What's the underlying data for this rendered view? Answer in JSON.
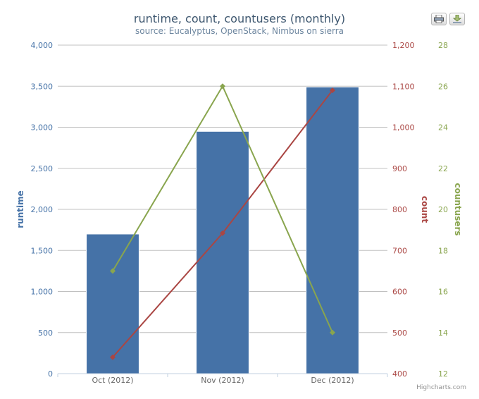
{
  "chart_data": {
    "type": "bar",
    "title": "runtime, count, countusers (monthly)",
    "subtitle": "source: Eucalyptus, OpenStack, Nimbus on sierra",
    "categories": [
      "Oct (2012)",
      "Nov (2012)",
      "Dec (2012)"
    ],
    "axes": {
      "runtime": {
        "label": "runtime",
        "range": [
          0,
          4000
        ],
        "ticks": [
          "0",
          "500",
          "1,000",
          "1,500",
          "2,000",
          "2,500",
          "3,000",
          "3,500",
          "4,000"
        ],
        "color": "#4572a7"
      },
      "count": {
        "label": "count",
        "range": [
          400,
          1200
        ],
        "ticks": [
          "400",
          "500",
          "600",
          "700",
          "800",
          "900",
          "1,000",
          "1,100",
          "1,200"
        ],
        "color": "#aa4643"
      },
      "countusers": {
        "label": "countusers",
        "range": [
          12,
          28
        ],
        "ticks": [
          "12",
          "14",
          "16",
          "18",
          "20",
          "22",
          "24",
          "26",
          "28"
        ],
        "color": "#89a54e"
      }
    },
    "series": [
      {
        "type": "bar",
        "axis": "runtime",
        "color": "#4572a7",
        "values": [
          1700,
          2950,
          3490
        ]
      },
      {
        "type": "line",
        "axis": "count",
        "color": "#aa4643",
        "values": [
          440,
          742,
          1090
        ]
      },
      {
        "type": "line",
        "axis": "countusers",
        "color": "#89a54e",
        "values": [
          17,
          26,
          14
        ]
      }
    ],
    "grid": true,
    "credit": "Highcharts.com"
  },
  "toolbar": {
    "print_icon": "printer-icon",
    "export_icon": "download-icon"
  }
}
